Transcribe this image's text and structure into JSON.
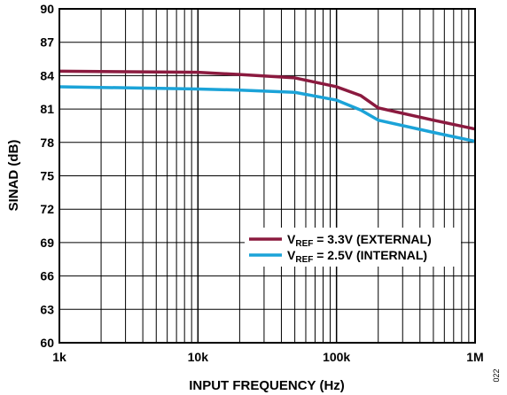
{
  "chart_data": {
    "type": "line",
    "xlabel": "INPUT FREQUENCY (Hz)",
    "ylabel": "SINAD (dB)",
    "x_scale": "log",
    "xlim": [
      1000,
      1000000
    ],
    "ylim": [
      60,
      90
    ],
    "grid": true,
    "x_tick_values": [
      1000,
      10000,
      100000,
      1000000
    ],
    "x_tick_labels": [
      "1k",
      "10k",
      "100k",
      "1M"
    ],
    "y_ticks": [
      60,
      63,
      66,
      69,
      72,
      75,
      78,
      81,
      84,
      87,
      90
    ],
    "legend_placement": "lower-right",
    "series": [
      {
        "label_main": "V",
        "label_sub": "REF",
        "label_rest": " = 3.3V (EXTERNAL)",
        "color": "#8b1a3f",
        "x": [
          1000,
          10000,
          20000,
          50000,
          100000,
          150000,
          200000,
          500000,
          1000000
        ],
        "y": [
          84.4,
          84.3,
          84.1,
          83.8,
          83.0,
          82.2,
          81.1,
          80.0,
          79.2
        ]
      },
      {
        "label_main": "V",
        "label_sub": "REF",
        "label_rest": " = 2.5V (INTERNAL)",
        "color": "#1ba3d8",
        "x": [
          1000,
          10000,
          20000,
          50000,
          100000,
          150000,
          200000,
          500000,
          1000000
        ],
        "y": [
          83.0,
          82.8,
          82.7,
          82.5,
          81.8,
          80.9,
          80.0,
          78.9,
          78.1
        ]
      }
    ]
  },
  "figure_id": "022"
}
